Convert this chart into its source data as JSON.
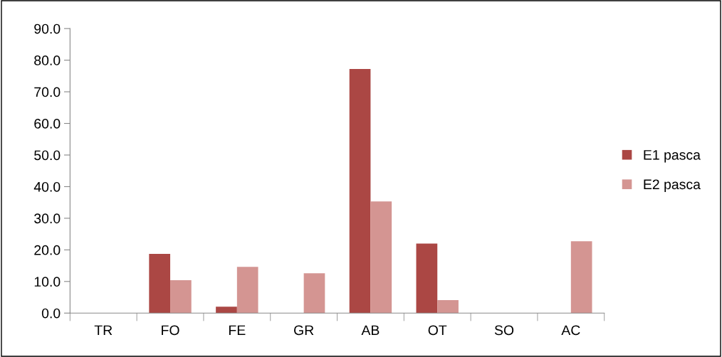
{
  "chart_data": {
    "type": "bar",
    "categories": [
      "TR",
      "FO",
      "FE",
      "GR",
      "AB",
      "OT",
      "SO",
      "AC"
    ],
    "series": [
      {
        "name": "E1 pasca",
        "color": "#ab4744",
        "values": [
          0,
          18.7,
          2.0,
          0,
          77.2,
          22.0,
          0,
          0
        ]
      },
      {
        "name": "E2 pasca",
        "color": "#d49592",
        "values": [
          0,
          10.4,
          14.6,
          12.6,
          35.3,
          4.1,
          0,
          22.7
        ]
      }
    ],
    "ylim": [
      0,
      90
    ],
    "yticks": [
      {
        "value": 0,
        "label": "0.0"
      },
      {
        "value": 10,
        "label": "10.0"
      },
      {
        "value": 20,
        "label": "20.0"
      },
      {
        "value": 30,
        "label": "30.0"
      },
      {
        "value": 40,
        "label": "40.0"
      },
      {
        "value": 50,
        "label": "50.0"
      },
      {
        "value": 60,
        "label": "60.0"
      },
      {
        "value": 70,
        "label": "70.0"
      },
      {
        "value": 80,
        "label": "80.0"
      },
      {
        "value": 90,
        "label": "90.0"
      }
    ],
    "grid": false,
    "legend": "right"
  }
}
